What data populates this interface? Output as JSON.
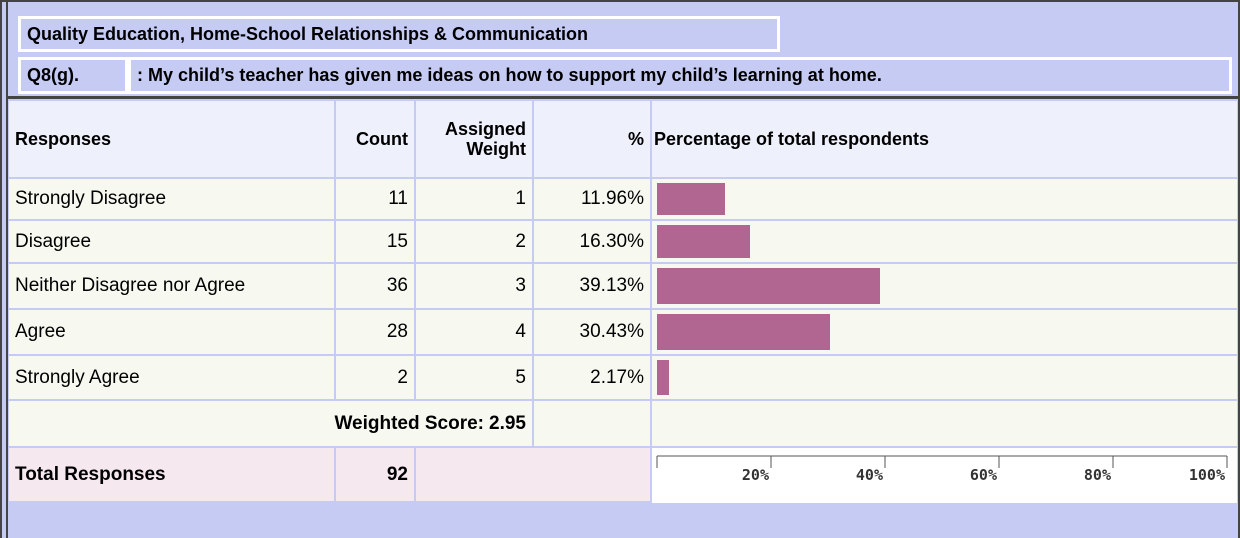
{
  "header": {
    "section": "Quality Education, Home-School Relationships & Communication",
    "question_id": "Q8(g).",
    "question": ": My child’s teacher has given me ideas on how to support my child’s learning at home."
  },
  "table": {
    "columns": [
      "Responses",
      "Count",
      "Assigned Weight",
      "%",
      "Percentage of total respondents"
    ],
    "rows": [
      {
        "response": "Strongly Disagree",
        "count": 11,
        "weight": 1,
        "percent": 11.96,
        "percent_label": "11.96%"
      },
      {
        "response": "Disagree",
        "count": 15,
        "weight": 2,
        "percent": 16.3,
        "percent_label": "16.30%"
      },
      {
        "response": "Neither Disagree nor Agree",
        "count": 36,
        "weight": 3,
        "percent": 39.13,
        "percent_label": "39.13%"
      },
      {
        "response": "Agree",
        "count": 28,
        "weight": 4,
        "percent": 30.43,
        "percent_label": "30.43%"
      },
      {
        "response": "Strongly Agree",
        "count": 2,
        "weight": 5,
        "percent": 2.17,
        "percent_label": "2.17%"
      }
    ],
    "weighted_score": {
      "label": "Weighted Score:",
      "value": 2.95
    },
    "total": {
      "label": "Total Responses",
      "value": 92
    }
  },
  "chart": {
    "type": "bar",
    "bar_color": "#b06690",
    "xlim": [
      0,
      100
    ],
    "xticks": [
      {
        "value": 20,
        "label": "20%"
      },
      {
        "value": 40,
        "label": "40%"
      },
      {
        "value": 60,
        "label": "60%"
      },
      {
        "value": 80,
        "label": "80%"
      },
      {
        "value": 100,
        "label": "100%"
      }
    ]
  }
}
